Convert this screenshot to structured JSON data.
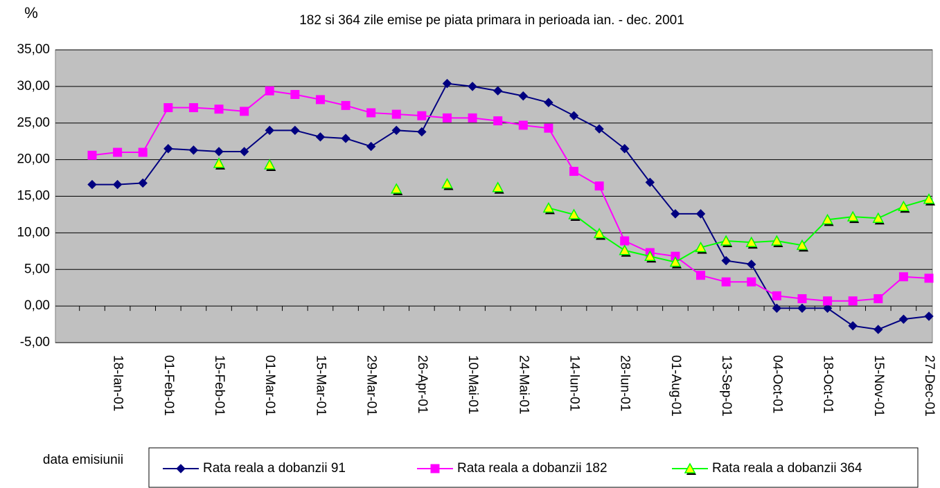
{
  "chart_data": {
    "type": "line",
    "title": "182 si 364 zile emise pe piata primara in perioada ian. - dec. 2001",
    "y_label": "%",
    "x_label": "data emisiunii",
    "categories": [
      null,
      "18-Ian-01",
      null,
      "01-Feb-01",
      null,
      "15-Feb-01",
      null,
      "01-Mar-01",
      null,
      "15-Mar-01",
      null,
      "29-Mar-01",
      null,
      "26-Apr-01",
      null,
      "10-Mai-01",
      null,
      "24-Mai-01",
      null,
      "14-Iun-01",
      null,
      "28-Iun-01",
      null,
      "01-Aug-01",
      null,
      "13-Sep-01",
      null,
      "04-Oct-01",
      null,
      "18-Oct-01",
      null,
      "15-Nov-01",
      null,
      "27-Dec-01"
    ],
    "series": [
      {
        "name": "Rata reala a dobanzii 91",
        "color": "#000080",
        "marker": "diamond",
        "values": [
          16.6,
          16.6,
          16.8,
          21.5,
          21.3,
          21.1,
          21.1,
          24.0,
          24.0,
          23.1,
          22.9,
          21.8,
          24.0,
          23.8,
          30.4,
          30.0,
          29.4,
          28.7,
          27.8,
          26.0,
          24.2,
          21.5,
          16.9,
          12.6,
          12.6,
          6.2,
          5.7,
          -0.3,
          -0.3,
          -0.3,
          -2.7,
          -3.2,
          -1.8,
          -1.4
        ]
      },
      {
        "name": "Rata reala a dobanzii 182",
        "color": "#ff00ff",
        "marker": "square",
        "values": [
          20.6,
          21.0,
          21.0,
          27.1,
          27.1,
          26.9,
          26.6,
          29.4,
          28.9,
          28.2,
          27.4,
          26.4,
          26.2,
          26.0,
          25.7,
          25.7,
          25.3,
          24.7,
          24.3,
          18.4,
          16.4,
          8.9,
          7.3,
          6.8,
          4.2,
          3.3,
          3.3,
          1.4,
          1.0,
          0.7,
          0.7,
          1.0,
          4.0,
          3.8
        ]
      },
      {
        "name": "Rata reala a dobanzii 364",
        "color": "#00ff00",
        "marker": "triangle",
        "values": [
          null,
          null,
          null,
          null,
          null,
          19.5,
          null,
          19.3,
          null,
          null,
          null,
          null,
          16.0,
          null,
          16.7,
          null,
          16.2,
          null,
          13.4,
          12.5,
          9.9,
          7.6,
          6.8,
          6.0,
          8.0,
          8.9,
          8.7,
          8.9,
          8.3,
          11.8,
          12.2,
          12.0,
          13.6,
          14.6
        ]
      }
    ],
    "ylim": [
      -5,
      35
    ],
    "yticks": [
      {
        "value": -5,
        "label": "-5,00"
      },
      {
        "value": 0,
        "label": "0,00"
      },
      {
        "value": 5,
        "label": "5,00"
      },
      {
        "value": 10,
        "label": "10,00"
      },
      {
        "value": 15,
        "label": "15,00"
      },
      {
        "value": 20,
        "label": "20,00"
      },
      {
        "value": 25,
        "label": "25,00"
      },
      {
        "value": 30,
        "label": "30,00"
      },
      {
        "value": 35,
        "label": "35,00"
      }
    ],
    "grid": true,
    "legend": "bottom"
  }
}
